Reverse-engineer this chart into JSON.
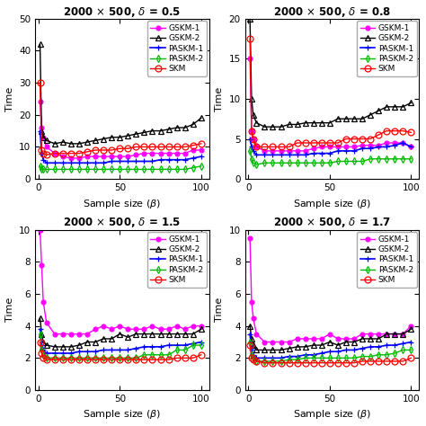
{
  "subplots": [
    {
      "title": "2000 $\\times$ 500, $\\delta$ = 0.5",
      "ylim": [
        0,
        50
      ],
      "yticks": [
        0,
        10,
        20,
        30,
        40,
        50
      ],
      "series": {
        "GSKM-1": {
          "color": "#ff00ff",
          "x": [
            1,
            2,
            3,
            5,
            10,
            15,
            20,
            25,
            30,
            35,
            40,
            45,
            50,
            55,
            60,
            65,
            70,
            75,
            80,
            85,
            90,
            95,
            100
          ],
          "y": [
            24,
            16,
            13,
            10,
            8,
            7,
            6.5,
            6.5,
            7,
            7,
            7,
            7,
            7,
            7,
            7.5,
            8,
            8,
            8,
            8,
            8,
            8,
            9,
            9
          ]
        },
        "GSKM-2": {
          "color": "#000000",
          "x": [
            1,
            2,
            3,
            5,
            10,
            15,
            20,
            25,
            30,
            35,
            40,
            45,
            50,
            55,
            60,
            65,
            70,
            75,
            80,
            85,
            90,
            95,
            100
          ],
          "y": [
            42,
            15,
            13,
            12,
            11,
            11.5,
            11,
            11,
            11.5,
            12,
            12.5,
            13,
            13,
            13.5,
            14,
            14.5,
            15,
            15,
            15.5,
            16,
            16,
            17,
            19
          ]
        },
        "PASKM-1": {
          "color": "#0000ff",
          "x": [
            1,
            2,
            3,
            5,
            10,
            15,
            20,
            25,
            30,
            35,
            40,
            45,
            50,
            55,
            60,
            65,
            70,
            75,
            80,
            85,
            90,
            95,
            100
          ],
          "y": [
            15,
            8,
            6,
            5,
            5,
            5,
            5,
            5,
            5,
            5,
            5,
            5.5,
            5.5,
            5.5,
            5.5,
            5.5,
            5.5,
            6,
            6,
            6,
            6,
            6.5,
            7
          ]
        },
        "PASKM-2": {
          "color": "#00bb00",
          "x": [
            1,
            2,
            3,
            5,
            10,
            15,
            20,
            25,
            30,
            35,
            40,
            45,
            50,
            55,
            60,
            65,
            70,
            75,
            80,
            85,
            90,
            95,
            100
          ],
          "y": [
            4,
            3,
            3,
            3,
            3,
            3,
            3,
            3,
            3,
            3,
            3,
            3,
            3,
            3,
            3,
            3,
            3,
            3,
            3,
            3,
            3,
            3.5,
            4
          ]
        },
        "SKM": {
          "color": "#ff0000",
          "x": [
            1,
            2,
            3,
            5,
            10,
            15,
            20,
            25,
            30,
            35,
            40,
            45,
            50,
            55,
            60,
            65,
            70,
            75,
            80,
            85,
            90,
            95,
            100
          ],
          "y": [
            30,
            9,
            8,
            7.5,
            8,
            8,
            8,
            8,
            8.5,
            9,
            9,
            9,
            9.5,
            9.5,
            10,
            10,
            10,
            10,
            10,
            10,
            10,
            10.5,
            11
          ]
        }
      }
    },
    {
      "title": "2000 $\\times$ 500, $\\delta$ = 0.8",
      "ylim": [
        0,
        20
      ],
      "yticks": [
        0,
        5,
        10,
        15,
        20
      ],
      "series": {
        "GSKM-1": {
          "color": "#ff00ff",
          "x": [
            1,
            2,
            3,
            5,
            10,
            15,
            20,
            25,
            30,
            35,
            40,
            45,
            50,
            55,
            60,
            65,
            70,
            75,
            80,
            85,
            90,
            95,
            100
          ],
          "y": [
            15,
            6,
            5,
            4,
            3.5,
            3.5,
            3.5,
            3.5,
            3.5,
            3.5,
            3.8,
            4,
            4,
            4,
            4,
            4,
            4.2,
            4.2,
            4.2,
            4.5,
            4.5,
            4.5,
            4
          ]
        },
        "GSKM-2": {
          "color": "#000000",
          "x": [
            1,
            2,
            3,
            5,
            10,
            15,
            20,
            25,
            30,
            35,
            40,
            45,
            50,
            55,
            60,
            65,
            70,
            75,
            80,
            85,
            90,
            95,
            100
          ],
          "y": [
            20,
            10,
            8,
            7,
            6.5,
            6.5,
            6.5,
            6.8,
            6.8,
            7,
            7,
            7,
            7,
            7.5,
            7.5,
            7.5,
            7.5,
            8,
            8.5,
            9,
            9,
            9,
            9.5
          ]
        },
        "PASKM-1": {
          "color": "#0000ff",
          "x": [
            1,
            2,
            3,
            5,
            10,
            15,
            20,
            25,
            30,
            35,
            40,
            45,
            50,
            55,
            60,
            65,
            70,
            75,
            80,
            85,
            90,
            95,
            100
          ],
          "y": [
            5,
            4,
            3.5,
            3,
            3,
            3,
            3,
            3,
            3,
            3,
            3.2,
            3.2,
            3.2,
            3.5,
            3.5,
            3.5,
            3.8,
            3.8,
            4,
            4,
            4.2,
            4.5,
            4
          ]
        },
        "PASKM-2": {
          "color": "#00bb00",
          "x": [
            1,
            2,
            3,
            5,
            10,
            15,
            20,
            25,
            30,
            35,
            40,
            45,
            50,
            55,
            60,
            65,
            70,
            75,
            80,
            85,
            90,
            95,
            100
          ],
          "y": [
            3.5,
            2.5,
            2,
            1.8,
            2,
            2,
            2,
            2,
            2,
            2,
            2,
            2,
            2,
            2.2,
            2.2,
            2.2,
            2.2,
            2.5,
            2.5,
            2.5,
            2.5,
            2.5,
            2.5
          ]
        },
        "SKM": {
          "color": "#ff0000",
          "x": [
            1,
            2,
            3,
            5,
            10,
            15,
            20,
            25,
            30,
            35,
            40,
            45,
            50,
            55,
            60,
            65,
            70,
            75,
            80,
            85,
            90,
            95,
            100
          ],
          "y": [
            17.5,
            6,
            5,
            4,
            4,
            4,
            4,
            4,
            4.5,
            4.5,
            4.5,
            4.5,
            4.5,
            4.5,
            5,
            5,
            5,
            5,
            5.5,
            6,
            6,
            6,
            5.8
          ]
        }
      }
    },
    {
      "title": "2000 $\\times$ 500, $\\delta$ = 1.5",
      "ylim": [
        0,
        10
      ],
      "yticks": [
        0,
        2,
        4,
        6,
        8,
        10
      ],
      "series": {
        "GSKM-1": {
          "color": "#ff00ff",
          "x": [
            1,
            2,
            3,
            5,
            10,
            15,
            20,
            25,
            30,
            35,
            40,
            45,
            50,
            55,
            60,
            65,
            70,
            75,
            80,
            85,
            90,
            95,
            100
          ],
          "y": [
            10,
            7.8,
            5.5,
            4.2,
            3.5,
            3.5,
            3.5,
            3.5,
            3.5,
            3.8,
            4.0,
            3.8,
            4.0,
            3.8,
            3.8,
            3.8,
            4.0,
            3.8,
            3.8,
            4.0,
            3.8,
            4.0,
            4.0
          ]
        },
        "GSKM-2": {
          "color": "#000000",
          "x": [
            1,
            2,
            3,
            5,
            10,
            15,
            20,
            25,
            30,
            35,
            40,
            45,
            50,
            55,
            60,
            65,
            70,
            75,
            80,
            85,
            90,
            95,
            100
          ],
          "y": [
            4.5,
            3.5,
            3,
            2.8,
            2.7,
            2.7,
            2.7,
            2.8,
            3.0,
            3.0,
            3.2,
            3.2,
            3.5,
            3.3,
            3.5,
            3.5,
            3.5,
            3.5,
            3.5,
            3.5,
            3.5,
            3.5,
            3.8
          ]
        },
        "PASKM-1": {
          "color": "#0000ff",
          "x": [
            1,
            2,
            3,
            5,
            10,
            15,
            20,
            25,
            30,
            35,
            40,
            45,
            50,
            55,
            60,
            65,
            70,
            75,
            80,
            85,
            90,
            95,
            100
          ],
          "y": [
            3.8,
            2.8,
            2.5,
            2.3,
            2.3,
            2.3,
            2.3,
            2.4,
            2.4,
            2.4,
            2.5,
            2.5,
            2.5,
            2.5,
            2.6,
            2.7,
            2.7,
            2.7,
            2.8,
            2.8,
            2.8,
            2.9,
            3.0
          ]
        },
        "PASKM-2": {
          "color": "#00bb00",
          "x": [
            1,
            2,
            3,
            5,
            10,
            15,
            20,
            25,
            30,
            35,
            40,
            45,
            50,
            55,
            60,
            65,
            70,
            75,
            80,
            85,
            90,
            95,
            100
          ],
          "y": [
            3.5,
            2.5,
            2.2,
            2.0,
            2.0,
            2.0,
            2.0,
            2.0,
            2.0,
            2.0,
            2.0,
            2.0,
            2.0,
            2.0,
            2.0,
            2.2,
            2.2,
            2.2,
            2.2,
            2.5,
            2.5,
            2.8,
            2.8
          ]
        },
        "SKM": {
          "color": "#ff0000",
          "x": [
            1,
            2,
            3,
            5,
            10,
            15,
            20,
            25,
            30,
            35,
            40,
            45,
            50,
            55,
            60,
            65,
            70,
            75,
            80,
            85,
            90,
            95,
            100
          ],
          "y": [
            3.0,
            2.3,
            2.0,
            1.9,
            1.9,
            1.9,
            1.9,
            1.9,
            1.9,
            1.9,
            1.9,
            1.9,
            1.9,
            1.9,
            1.9,
            1.9,
            1.9,
            1.9,
            1.9,
            2.0,
            2.0,
            2.0,
            2.2
          ]
        }
      }
    },
    {
      "title": "2000 $\\times$ 500, $\\delta$ = 1.7",
      "ylim": [
        0,
        10
      ],
      "yticks": [
        0,
        2,
        4,
        6,
        8,
        10
      ],
      "series": {
        "GSKM-1": {
          "color": "#ff00ff",
          "x": [
            1,
            2,
            3,
            5,
            10,
            15,
            20,
            25,
            30,
            35,
            40,
            45,
            50,
            55,
            60,
            65,
            70,
            75,
            80,
            85,
            90,
            95,
            100
          ],
          "y": [
            9.5,
            5.5,
            4.5,
            3.5,
            3.0,
            3.0,
            3.0,
            3.0,
            3.2,
            3.2,
            3.2,
            3.2,
            3.5,
            3.2,
            3.2,
            3.2,
            3.5,
            3.5,
            3.5,
            3.5,
            3.5,
            3.5,
            4.0
          ]
        },
        "GSKM-2": {
          "color": "#000000",
          "x": [
            1,
            2,
            3,
            5,
            10,
            15,
            20,
            25,
            30,
            35,
            40,
            45,
            50,
            55,
            60,
            65,
            70,
            75,
            80,
            85,
            90,
            95,
            100
          ],
          "y": [
            4.0,
            3.2,
            2.8,
            2.5,
            2.5,
            2.5,
            2.5,
            2.6,
            2.7,
            2.7,
            2.8,
            2.8,
            3.0,
            2.8,
            3.0,
            3.0,
            3.2,
            3.2,
            3.2,
            3.5,
            3.5,
            3.5,
            3.8
          ]
        },
        "PASKM-1": {
          "color": "#0000ff",
          "x": [
            1,
            2,
            3,
            5,
            10,
            15,
            20,
            25,
            30,
            35,
            40,
            45,
            50,
            55,
            60,
            65,
            70,
            75,
            80,
            85,
            90,
            95,
            100
          ],
          "y": [
            3.5,
            2.5,
            2.2,
            2.0,
            2.0,
            2.0,
            2.0,
            2.1,
            2.1,
            2.2,
            2.2,
            2.3,
            2.4,
            2.4,
            2.5,
            2.5,
            2.6,
            2.7,
            2.7,
            2.8,
            2.8,
            2.9,
            3.0
          ]
        },
        "PASKM-2": {
          "color": "#00bb00",
          "x": [
            1,
            2,
            3,
            5,
            10,
            15,
            20,
            25,
            30,
            35,
            40,
            45,
            50,
            55,
            60,
            65,
            70,
            75,
            80,
            85,
            90,
            95,
            100
          ],
          "y": [
            3.0,
            2.2,
            2.0,
            1.8,
            1.8,
            1.8,
            1.8,
            1.9,
            1.9,
            2.0,
            2.0,
            2.0,
            2.0,
            2.0,
            2.0,
            2.0,
            2.1,
            2.1,
            2.2,
            2.2,
            2.3,
            2.5,
            2.5
          ]
        },
        "SKM": {
          "color": "#ff0000",
          "x": [
            1,
            2,
            3,
            5,
            10,
            15,
            20,
            25,
            30,
            35,
            40,
            45,
            50,
            55,
            60,
            65,
            70,
            75,
            80,
            85,
            90,
            95,
            100
          ],
          "y": [
            2.8,
            2.0,
            1.9,
            1.8,
            1.7,
            1.7,
            1.7,
            1.7,
            1.7,
            1.7,
            1.7,
            1.7,
            1.7,
            1.7,
            1.7,
            1.7,
            1.8,
            1.8,
            1.8,
            1.8,
            1.8,
            1.8,
            2.0
          ]
        }
      }
    }
  ],
  "series_order": [
    "GSKM-1",
    "GSKM-2",
    "PASKM-1",
    "PASKM-2",
    "SKM"
  ],
  "xlabel": "Sample size ($\\beta$)",
  "ylabel": "Time",
  "bg_color": "#ffffff",
  "title_fontsize": 8.5,
  "axis_fontsize": 8,
  "tick_fontsize": 7.5,
  "legend_fontsize": 6.5
}
